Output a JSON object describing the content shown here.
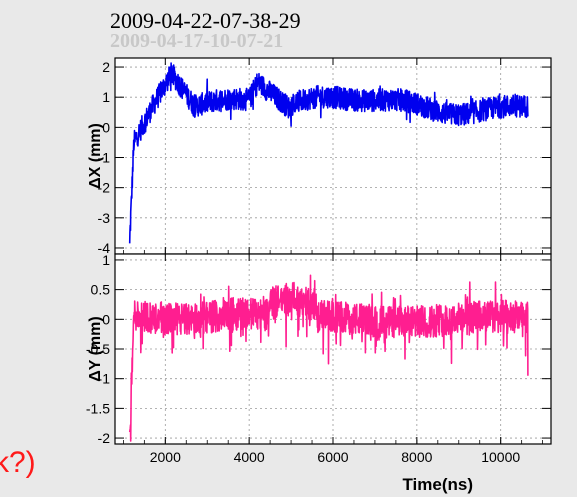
{
  "header": {
    "timestamp_primary": "2009-04-22-07-38-29",
    "timestamp_secondary": "2009-04-17-10-07-21"
  },
  "side_note": "k?)",
  "colors": {
    "x_series": "#0000ee",
    "y_series": "#ff1e90",
    "background": "#e9e9e9",
    "note": "#ff1a1a"
  },
  "chart_data": [
    {
      "type": "line",
      "series": [
        {
          "name": "",
          "color": "#0000ee",
          "shape": "dx"
        }
      ],
      "xlabel": "",
      "ylabel": "ΔX (mm)",
      "xlim": [
        800,
        11200
      ],
      "ylim": [
        -4.2,
        2.3
      ],
      "xticks": [
        2000,
        4000,
        6000,
        8000,
        10000
      ],
      "xtick_labels": [
        "2000",
        "4000",
        "6000",
        "8000",
        "10000"
      ],
      "yticks": [
        -4,
        -3,
        -2,
        -1,
        0,
        1,
        2
      ],
      "ytick_labels": [
        "-4",
        "-3",
        "-2",
        "-1",
        "0",
        "1",
        "2"
      ],
      "x_range": [
        1150,
        10650
      ],
      "grid": true
    },
    {
      "type": "line",
      "series": [
        {
          "name": "",
          "color": "#ff1e90",
          "shape": "dy"
        }
      ],
      "xlabel": "Time(ns)",
      "ylabel": "ΔY (mm)",
      "xlim": [
        800,
        11200
      ],
      "ylim": [
        -2.1,
        1.1
      ],
      "xticks": [
        2000,
        4000,
        6000,
        8000,
        10000
      ],
      "xtick_labels": [
        "2000",
        "4000",
        "6000",
        "8000",
        "10000"
      ],
      "yticks": [
        -2,
        -1.5,
        -1,
        -0.5,
        0,
        0.5,
        1
      ],
      "ytick_labels": [
        "-2",
        "-1.5",
        "-1",
        "-0.5",
        "0",
        "0.5",
        "1"
      ],
      "x_range": [
        1150,
        10650
      ],
      "grid": true
    }
  ]
}
